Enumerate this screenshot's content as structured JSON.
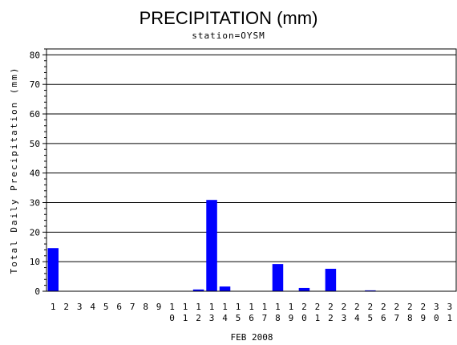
{
  "chart_data": {
    "type": "bar",
    "title": "PRECIPITATION (mm)",
    "subtitle": "station=OYSM",
    "xlabel": "FEB 2008",
    "ylabel": "Total Daily Precipitation (mm)",
    "ylim": [
      0,
      82
    ],
    "yticks": [
      0,
      10,
      20,
      30,
      40,
      50,
      60,
      70,
      80
    ],
    "grid": true,
    "categories": [
      "1",
      "2",
      "3",
      "4",
      "5",
      "6",
      "7",
      "8",
      "9",
      "10",
      "11",
      "12",
      "13",
      "14",
      "15",
      "16",
      "17",
      "18",
      "19",
      "20",
      "21",
      "22",
      "23",
      "24",
      "25",
      "26",
      "27",
      "28",
      "29",
      "30",
      "31"
    ],
    "values": [
      14.6,
      0,
      0,
      0,
      0,
      0,
      0,
      0,
      0,
      0,
      0,
      0.6,
      30.9,
      1.6,
      0,
      0,
      0,
      9.2,
      0,
      1.1,
      0,
      7.6,
      0,
      0,
      0.3,
      0,
      0,
      0,
      0,
      0,
      0
    ],
    "bar_color": "#0000ff"
  }
}
